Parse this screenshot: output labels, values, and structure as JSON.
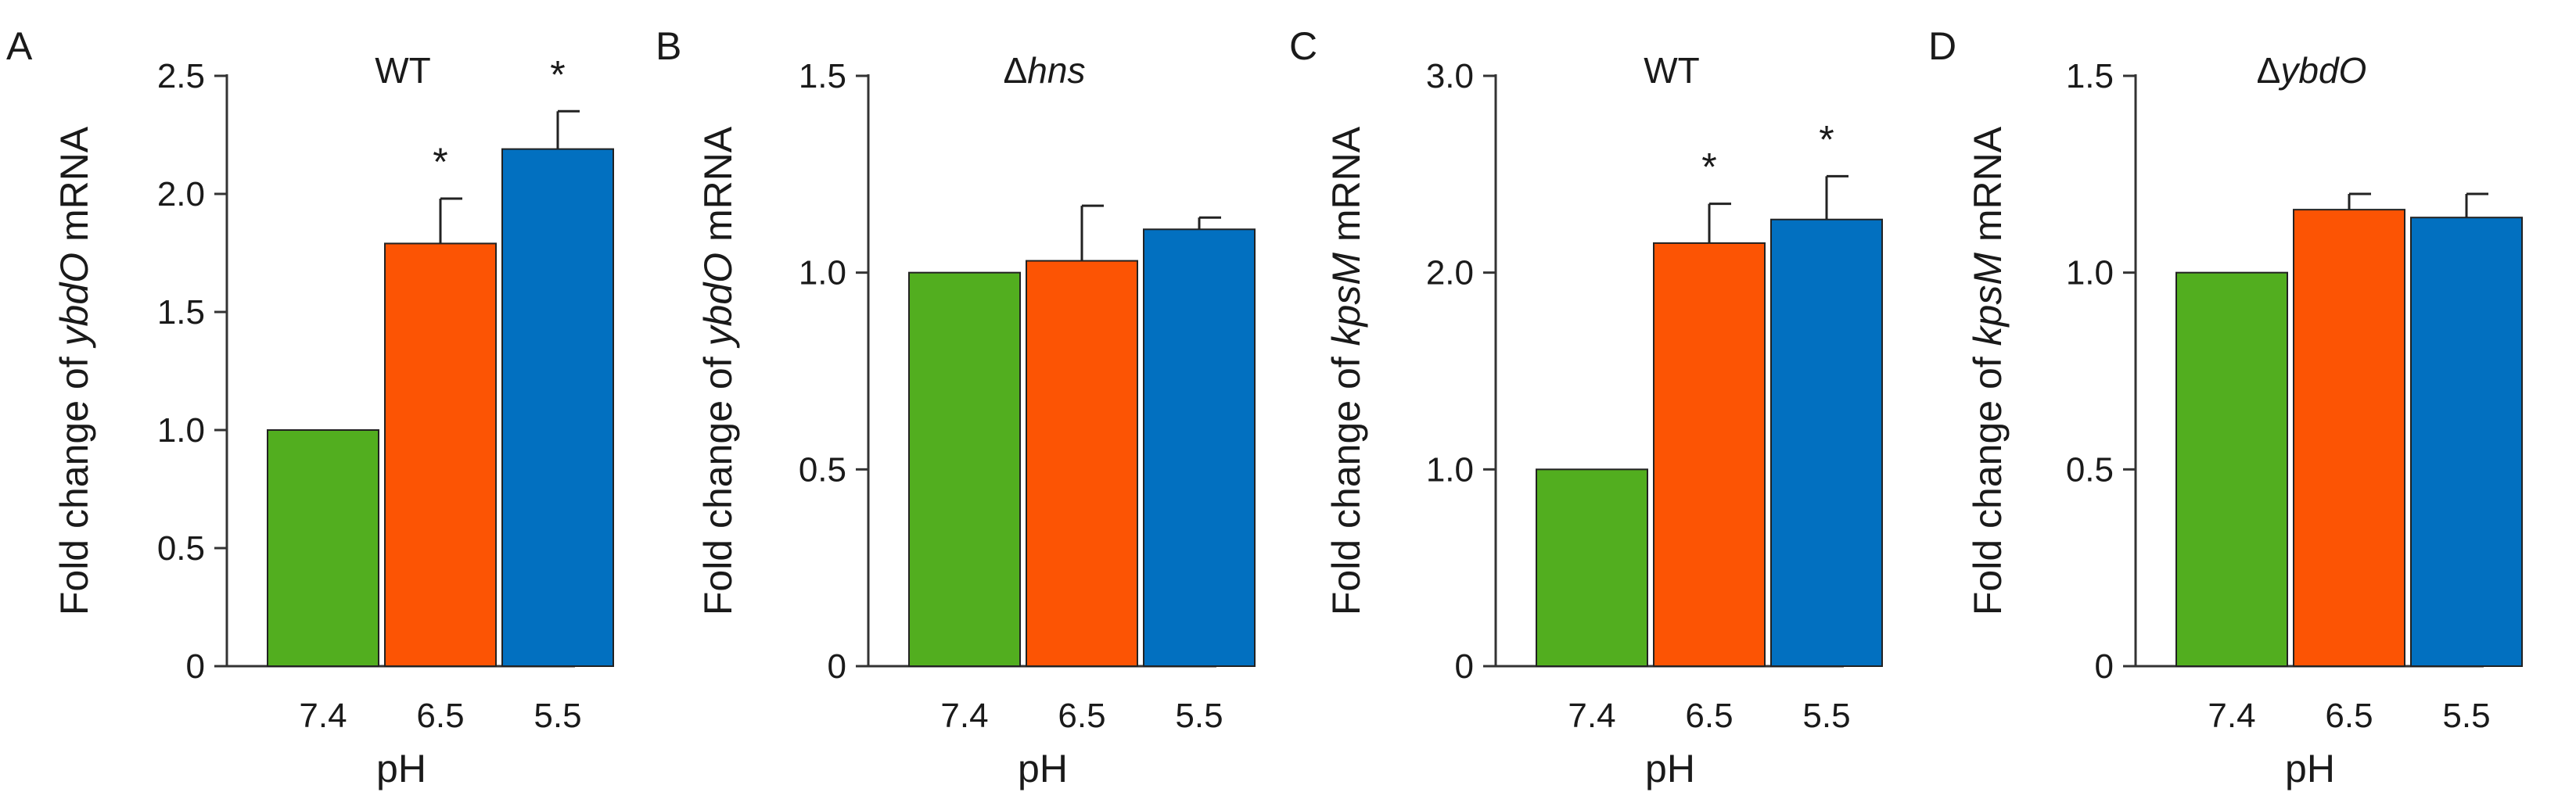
{
  "chart_data": [
    {
      "type": "bar",
      "panel": "A",
      "title": "WT",
      "ylabel_parts": [
        {
          "t": "Fold change of ",
          "i": false
        },
        {
          "t": "ybdO",
          "i": true
        },
        {
          "t": " mRNA",
          "i": false
        }
      ],
      "xlabel": "pH",
      "categories": [
        "7.4",
        "6.5",
        "5.5"
      ],
      "values": [
        1.0,
        1.79,
        2.19
      ],
      "errors": [
        0,
        0.19,
        0.16
      ],
      "significance": [
        "",
        "*",
        "*"
      ],
      "ylim": [
        0,
        2.5
      ],
      "yticks": [
        0,
        0.5,
        1.0,
        1.5,
        2.0,
        2.5
      ],
      "ytick_labels": [
        "0",
        "0.5",
        "1.0",
        "1.5",
        "2.0",
        "2.5"
      ],
      "colors": [
        "#52ae1f",
        "#fc5404",
        "#0270c0"
      ]
    },
    {
      "type": "bar",
      "panel": "B",
      "title_parts": [
        {
          "t": "Δ",
          "i": false
        },
        {
          "t": "hns",
          "i": true
        }
      ],
      "ylabel_parts": [
        {
          "t": "Fold change of ",
          "i": false
        },
        {
          "t": "ybdO",
          "i": true
        },
        {
          "t": " mRNA",
          "i": false
        }
      ],
      "xlabel": "pH",
      "categories": [
        "7.4",
        "6.5",
        "5.5"
      ],
      "values": [
        1.0,
        1.03,
        1.11
      ],
      "errors": [
        0,
        0.14,
        0.03
      ],
      "significance": [
        "",
        "",
        ""
      ],
      "ylim": [
        0,
        1.5
      ],
      "yticks": [
        0,
        0.5,
        1.0,
        1.5
      ],
      "ytick_labels": [
        "0",
        "0.5",
        "1.0",
        "1.5"
      ],
      "colors": [
        "#52ae1f",
        "#fc5404",
        "#0270c0"
      ]
    },
    {
      "type": "bar",
      "panel": "C",
      "title": "WT",
      "ylabel_parts": [
        {
          "t": "Fold change of ",
          "i": false
        },
        {
          "t": "kpsM",
          "i": true
        },
        {
          "t": " mRNA",
          "i": false
        }
      ],
      "xlabel": "pH",
      "categories": [
        "7.4",
        "6.5",
        "5.5"
      ],
      "values": [
        1.0,
        2.15,
        2.27
      ],
      "errors": [
        0,
        0.2,
        0.22
      ],
      "significance": [
        "",
        "*",
        "*"
      ],
      "ylim": [
        0,
        3.0
      ],
      "yticks": [
        0,
        1.0,
        2.0,
        3.0
      ],
      "ytick_labels": [
        "0",
        "1.0",
        "2.0",
        "3.0"
      ],
      "colors": [
        "#52ae1f",
        "#fc5404",
        "#0270c0"
      ]
    },
    {
      "type": "bar",
      "panel": "D",
      "title_parts": [
        {
          "t": "Δ",
          "i": false
        },
        {
          "t": "ybdO",
          "i": true
        }
      ],
      "ylabel_parts": [
        {
          "t": "Fold change of ",
          "i": false
        },
        {
          "t": "kpsM",
          "i": true
        },
        {
          "t": " mRNA",
          "i": false
        }
      ],
      "xlabel": "pH",
      "categories": [
        "7.4",
        "6.5",
        "5.5"
      ],
      "values": [
        1.0,
        1.16,
        1.14
      ],
      "errors": [
        0,
        0.04,
        0.06
      ],
      "significance": [
        "",
        "",
        ""
      ],
      "ylim": [
        0,
        1.5
      ],
      "yticks": [
        0,
        0.5,
        1.0,
        1.5
      ],
      "ytick_labels": [
        "0",
        "0.5",
        "1.0",
        "1.5"
      ],
      "colors": [
        "#52ae1f",
        "#fc5404",
        "#0270c0"
      ]
    }
  ]
}
